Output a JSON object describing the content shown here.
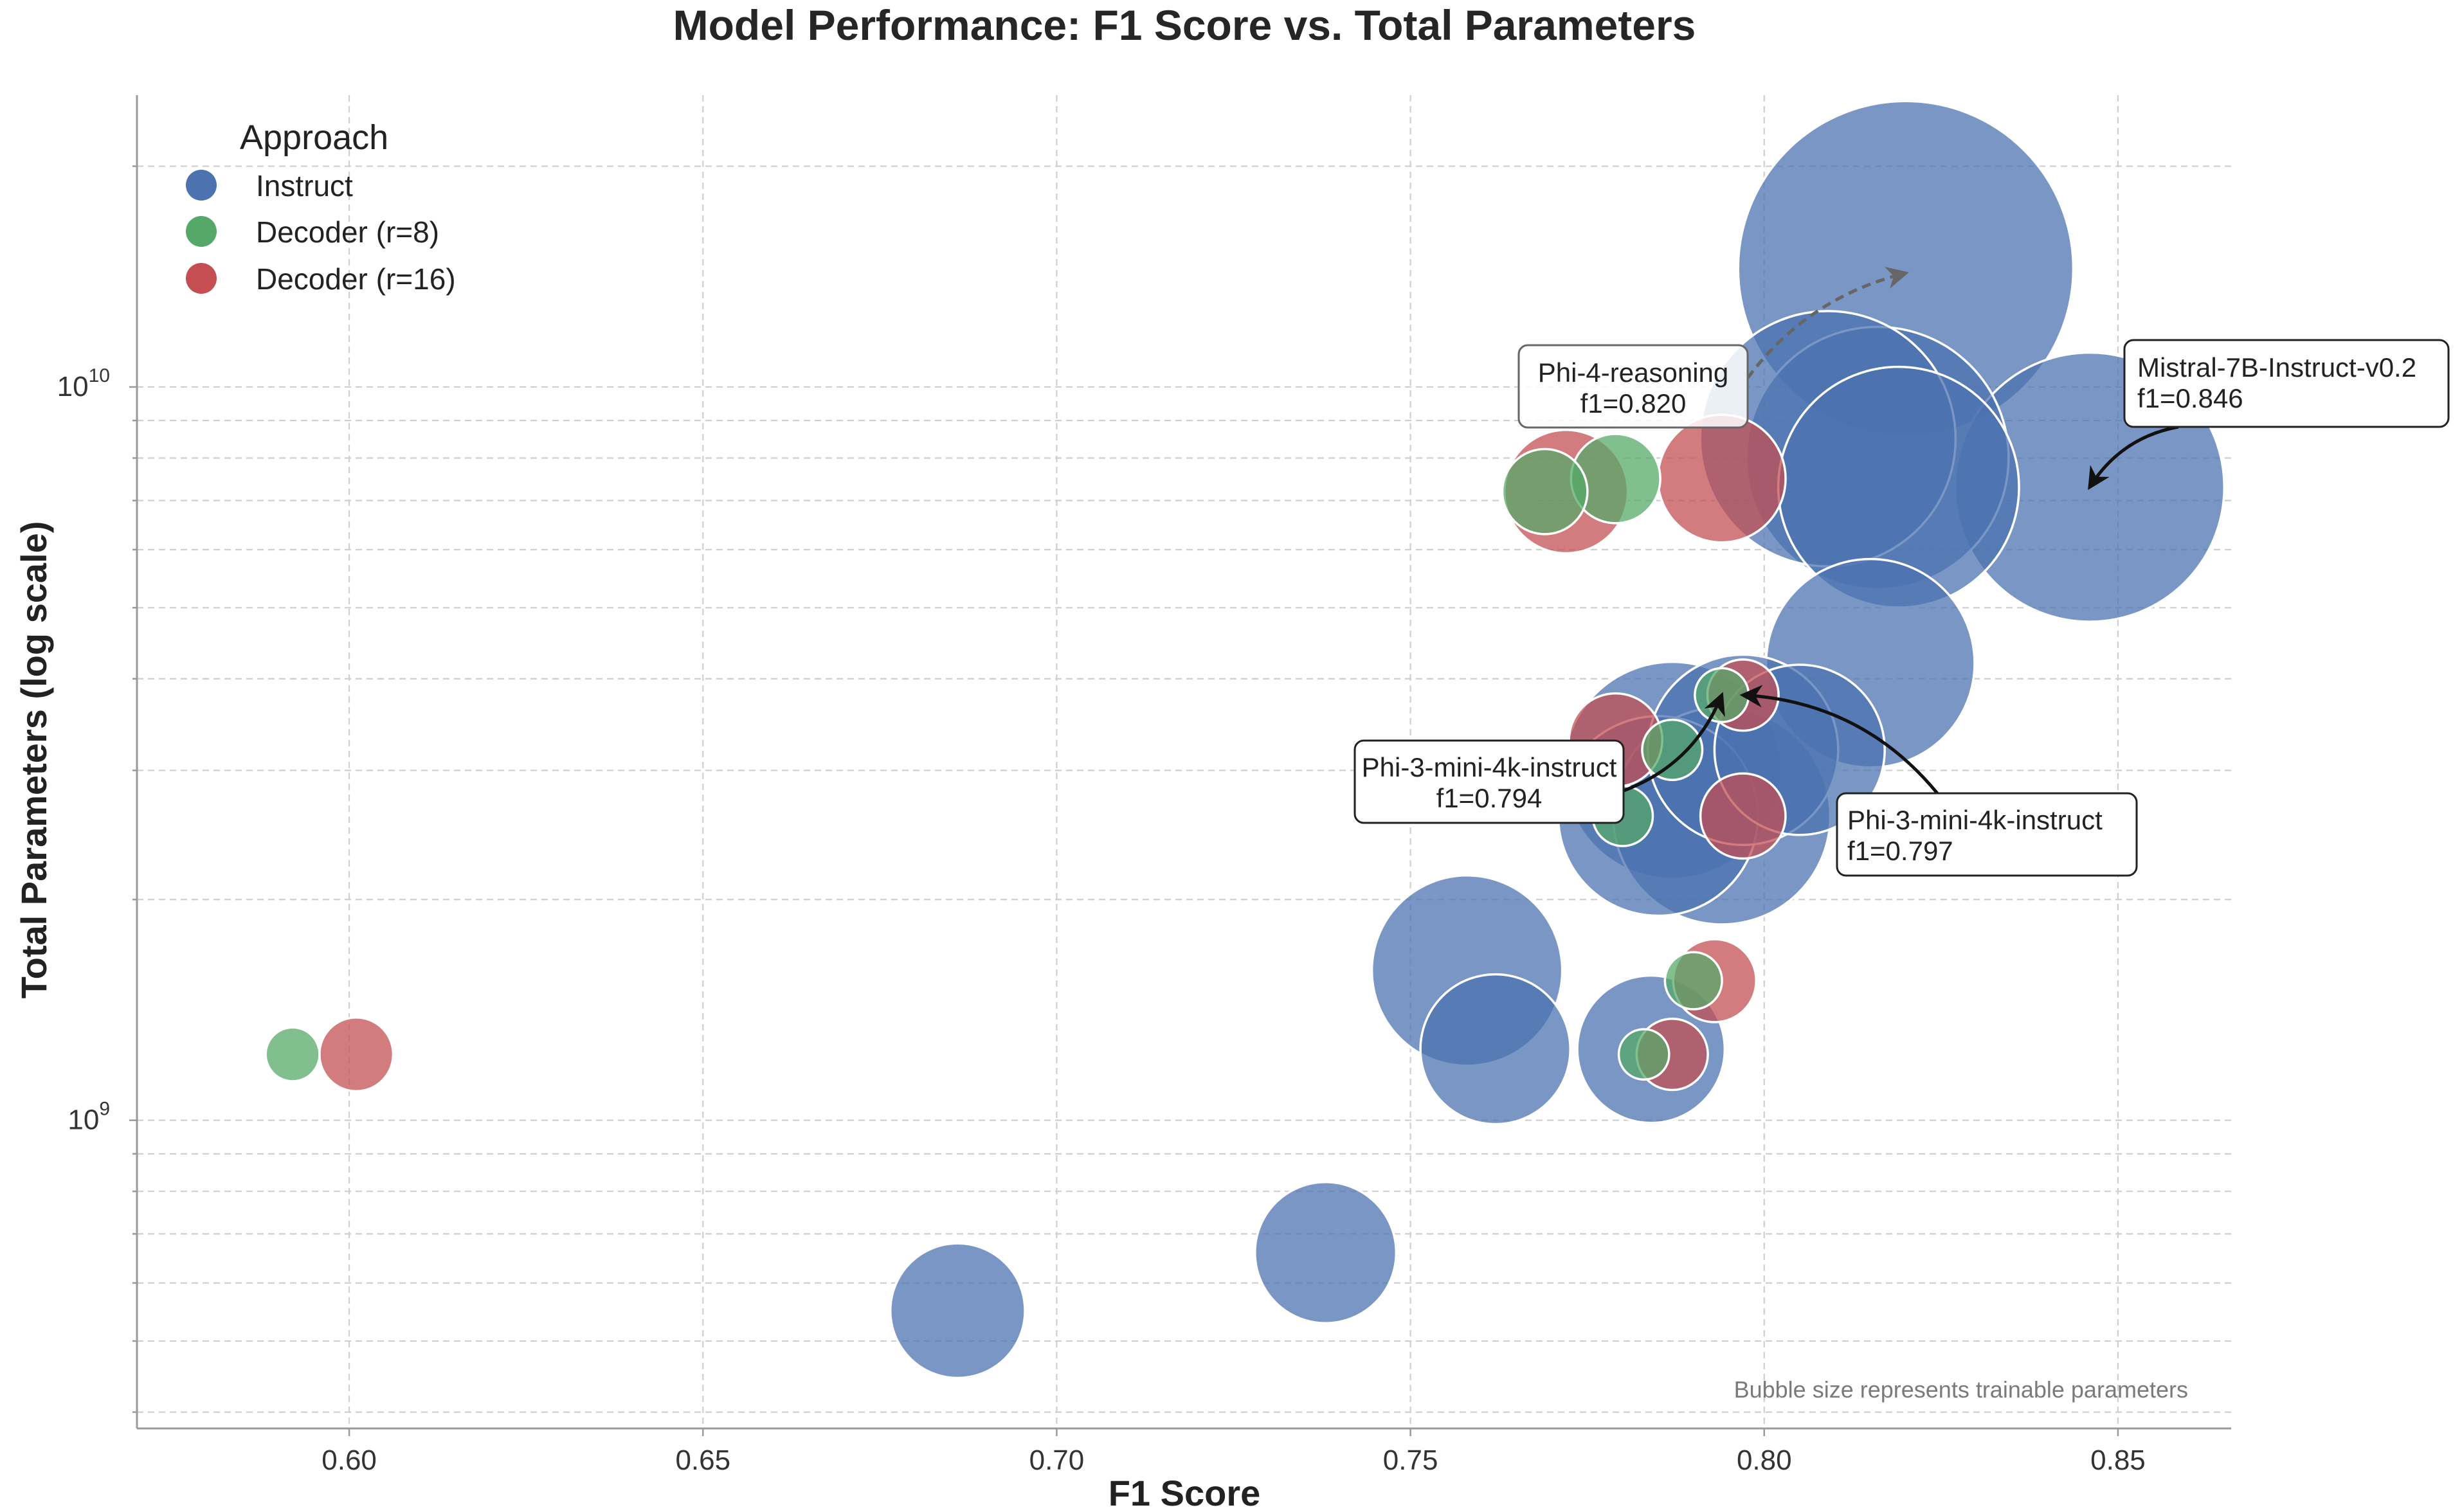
{
  "chart_data": {
    "type": "scatter",
    "title": "Model Performance: F1 Score vs. Total Parameters",
    "xlabel": "F1 Score",
    "ylabel": "Total Parameters (log scale)",
    "x_scale": "linear",
    "y_scale": "log",
    "xlim": [
      0.57,
      0.866
    ],
    "ylim": [
      380000000,
      25000000000
    ],
    "x_ticks": [
      0.6,
      0.65,
      0.7,
      0.75,
      0.8,
      0.85
    ],
    "x_tick_labels": [
      "0.60",
      "0.65",
      "0.70",
      "0.75",
      "0.80",
      "0.85"
    ],
    "y_major_ticks": [
      {
        "value": 1000000000,
        "base": "10",
        "exp": "9"
      },
      {
        "value": 10000000000,
        "base": "10",
        "exp": "10"
      }
    ],
    "y_minor_ticks": [
      400000000,
      500000000,
      600000000,
      700000000,
      800000000,
      900000000,
      2000000000,
      3000000000,
      4000000000,
      5000000000,
      6000000000,
      7000000000,
      8000000000,
      9000000000,
      20000000000
    ],
    "grid": true,
    "size_note": "Bubble size represents trainable parameters",
    "legend": {
      "title": "Approach",
      "placement": "top-left",
      "entries": [
        {
          "label": "Instruct",
          "color": "#4c72b0"
        },
        {
          "label": "Decoder (r=8)",
          "color": "#55a868"
        },
        {
          "label": "Decoder (r=16)",
          "color": "#c44e52"
        }
      ]
    },
    "series": [
      {
        "name": "Instruct",
        "color": "#4c72b0",
        "points": [
          {
            "x": 0.686,
            "y": 550000000,
            "size": 0.5
          },
          {
            "x": 0.738,
            "y": 660000000,
            "size": 0.55
          },
          {
            "x": 0.758,
            "y": 1600000000,
            "size": 1.0
          },
          {
            "x": 0.762,
            "y": 1250000000,
            "size": 0.62
          },
          {
            "x": 0.784,
            "y": 1250000000,
            "size": 0.6
          },
          {
            "x": 0.787,
            "y": 3000000000,
            "size": 1.3
          },
          {
            "x": 0.785,
            "y": 2600000000,
            "size": 1.1
          },
          {
            "x": 0.794,
            "y": 2600000000,
            "size": 1.3
          },
          {
            "x": 0.797,
            "y": 3200000000,
            "size": 1.0
          },
          {
            "x": 0.805,
            "y": 3200000000,
            "size": 0.8
          },
          {
            "x": 0.815,
            "y": 4200000000,
            "size": 1.2
          },
          {
            "x": 0.809,
            "y": 8500000000,
            "size": 1.8
          },
          {
            "x": 0.82,
            "y": 14500000000,
            "size": 3.1
          },
          {
            "x": 0.816,
            "y": 8000000000,
            "size": 1.9
          },
          {
            "x": 0.819,
            "y": 7300000000,
            "size": 1.6
          },
          {
            "x": 0.846,
            "y": 7300000000,
            "size": 2.0
          }
        ]
      },
      {
        "name": "Decoder (r=8)",
        "color": "#55a868",
        "points": [
          {
            "x": 0.592,
            "y": 1230000000,
            "size": 0.08
          },
          {
            "x": 0.769,
            "y": 7200000000,
            "size": 0.2
          },
          {
            "x": 0.779,
            "y": 7500000000,
            "size": 0.22
          },
          {
            "x": 0.787,
            "y": 3200000000,
            "size": 0.1
          },
          {
            "x": 0.78,
            "y": 2600000000,
            "size": 0.1
          },
          {
            "x": 0.794,
            "y": 3800000000,
            "size": 0.08
          },
          {
            "x": 0.79,
            "y": 1550000000,
            "size": 0.09
          },
          {
            "x": 0.783,
            "y": 1230000000,
            "size": 0.07
          }
        ]
      },
      {
        "name": "Decoder (r=16)",
        "color": "#c44e52",
        "points": [
          {
            "x": 0.601,
            "y": 1230000000,
            "size": 0.15
          },
          {
            "x": 0.772,
            "y": 7200000000,
            "size": 0.42
          },
          {
            "x": 0.794,
            "y": 7500000000,
            "size": 0.45
          },
          {
            "x": 0.779,
            "y": 3300000000,
            "size": 0.24
          },
          {
            "x": 0.797,
            "y": 3800000000,
            "size": 0.14
          },
          {
            "x": 0.797,
            "y": 2600000000,
            "size": 0.2
          },
          {
            "x": 0.793,
            "y": 1550000000,
            "size": 0.19
          },
          {
            "x": 0.787,
            "y": 1230000000,
            "size": 0.14
          }
        ]
      }
    ],
    "annotations": [
      {
        "name": "phi4-reasoning",
        "line1": "Phi-4-reasoning",
        "line2": "f1=0.820",
        "target": {
          "x": 0.82,
          "y": 14500000000
        },
        "style": "dashed",
        "text_align": "center"
      },
      {
        "name": "mistral",
        "line1": "Mistral-7B-Instruct-v0.2",
        "line2": "f1=0.846",
        "target": {
          "x": 0.846,
          "y": 7300000000
        },
        "style": "solid",
        "text_align": "left"
      },
      {
        "name": "phi3-794",
        "line1": "Phi-3-mini-4k-instruct",
        "line2": "f1=0.794",
        "target": {
          "x": 0.794,
          "y": 3800000000
        },
        "style": "solid",
        "text_align": "center"
      },
      {
        "name": "phi3-797",
        "line1": "Phi-3-mini-4k-instruct",
        "line2": "f1=0.797",
        "target": {
          "x": 0.797,
          "y": 3800000000
        },
        "style": "solid",
        "text_align": "left"
      }
    ]
  }
}
